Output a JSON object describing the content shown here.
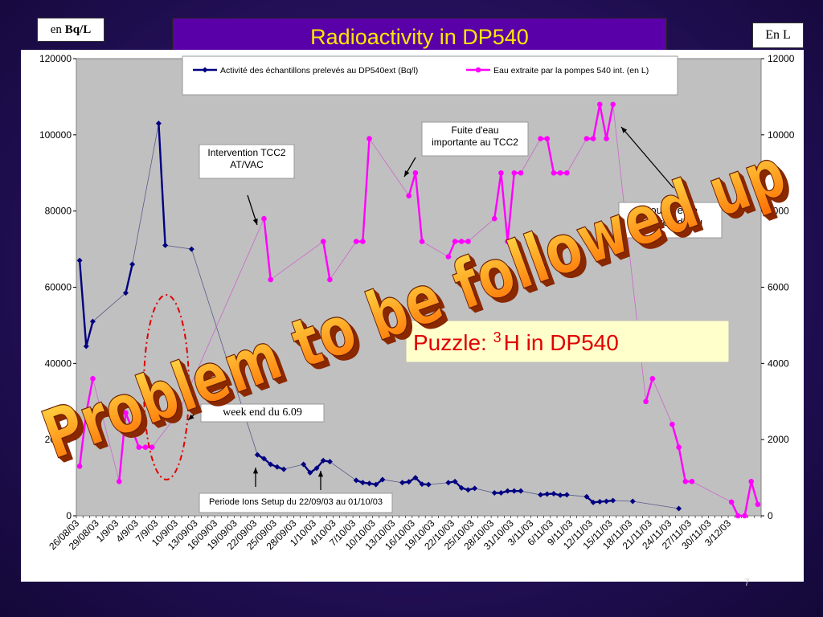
{
  "slide": {
    "title": "Radioactivity in DP540",
    "unit_left_prefix": "en ",
    "unit_left_bold": "Bq/L",
    "unit_right": "En L",
    "overlay_text": "Problem to be followed up",
    "puzzle_text_prefix": "Puzzle: ",
    "puzzle_sup": "3",
    "puzzle_text_suffix": "H in DP540",
    "page_number": "7",
    "colors": {
      "background": "#24105a",
      "title_bg": "#5a00a8",
      "title_text": "#ffe600",
      "plot_bg": "#c0c0c0",
      "series1": "#000080",
      "series2": "#ff00ff",
      "overlay_top": "#ffe14a",
      "overlay_bottom": "#ff6a00",
      "ellipse": "#e00000"
    }
  },
  "chart_data": {
    "type": "line",
    "categories": [
      "26/08/03",
      "27/08/03",
      "28/08/03",
      "29/08/03",
      "30/08/03",
      "31/08/03",
      "1/9/03",
      "2/9/03",
      "3/9/03",
      "4/9/03",
      "5/9/03",
      "6/9/03",
      "7/9/03",
      "8/9/03",
      "9/9/03",
      "10/9/03",
      "11/9/03",
      "12/9/03",
      "13/09/03",
      "14/09/03",
      "15/09/03",
      "16/09/03",
      "17/09/03",
      "18/09/03",
      "19/09/03",
      "20/09/03",
      "21/09/03",
      "22/09/03",
      "23/09/03",
      "24/09/03",
      "25/09/03",
      "26/09/03",
      "27/09/03",
      "28/09/03",
      "29/09/03",
      "30/09/03",
      "1/10/03",
      "2/10/03",
      "3/10/03",
      "4/10/03",
      "5/10/03",
      "6/10/03",
      "7/10/03",
      "8/10/03",
      "9/10/03",
      "10/10/03",
      "11/10/03",
      "12/10/03",
      "13/10/03",
      "14/10/03",
      "15/10/03",
      "16/10/03",
      "17/10/03",
      "18/10/03",
      "19/10/03",
      "20/10/03",
      "21/10/03",
      "22/10/03",
      "23/10/03",
      "24/10/03",
      "25/10/03",
      "26/10/03",
      "27/10/03",
      "28/10/03",
      "29/10/03",
      "30/10/03",
      "31/10/03",
      "1/11/03",
      "2/11/03",
      "3/11/03",
      "4/11/03",
      "5/11/03",
      "6/11/03",
      "7/11/03",
      "8/11/03",
      "9/11/03",
      "10/11/03",
      "11/11/03",
      "12/11/03",
      "13/11/03",
      "14/11/03",
      "15/11/03",
      "16/11/03",
      "17/11/03",
      "18/11/03",
      "19/11/03",
      "20/11/03",
      "21/11/03",
      "22/11/03",
      "23/11/03",
      "24/11/03",
      "25/11/03",
      "26/11/03",
      "27/11/03",
      "28/11/03",
      "29/11/03",
      "30/11/03",
      "1/12/03",
      "2/12/03",
      "3/12/03",
      "4/12/03",
      "5/12/03",
      "6/12/03",
      "7/12/03"
    ],
    "tick_labels": [
      "26/08/03",
      "29/08/03",
      "1/9/03",
      "4/9/03",
      "7/9/03",
      "10/9/03",
      "13/09/03",
      "16/09/03",
      "19/09/03",
      "22/09/03",
      "25/09/03",
      "28/09/03",
      "1/10/03",
      "4/10/03",
      "7/10/03",
      "10/10/03",
      "13/10/03",
      "16/10/03",
      "19/10/03",
      "22/10/03",
      "25/10/03",
      "28/10/03",
      "31/10/03",
      "3/11/03",
      "6/11/03",
      "9/11/03",
      "12/11/03",
      "15/11/03",
      "18/11/03",
      "21/11/03",
      "24/11/03",
      "27/11/03",
      "30/11/03",
      "3/12/03"
    ],
    "y_left": {
      "ylim": [
        0,
        120000
      ],
      "ticks": [
        "0",
        "20000",
        "40000",
        "60000",
        "80000",
        "100000",
        "120000"
      ]
    },
    "y_right": {
      "ylim": [
        0,
        12000
      ],
      "ticks": [
        "0",
        "2000",
        "4000",
        "6000",
        "8000",
        "10000",
        "12000"
      ]
    },
    "legend_placement": "top",
    "series": [
      {
        "name": "Activité des échantillons prelevés au DP540ext (Bq/l)",
        "axis": "left",
        "color": "#000080",
        "marker": "diamond",
        "points": [
          [
            0,
            67000
          ],
          [
            1,
            44500
          ],
          [
            2,
            51000
          ],
          [
            7,
            58500
          ],
          [
            8,
            66000
          ],
          [
            12,
            103000
          ],
          [
            13,
            71000
          ],
          [
            17,
            70000
          ],
          [
            27,
            16000
          ],
          [
            28,
            15000
          ],
          [
            29,
            13500
          ],
          [
            30,
            12800
          ],
          [
            31,
            12200
          ],
          [
            34,
            13500
          ],
          [
            35,
            11300
          ],
          [
            36,
            12500
          ],
          [
            37,
            14500
          ],
          [
            38,
            14200
          ],
          [
            42,
            9300
          ],
          [
            43,
            8700
          ],
          [
            44,
            8500
          ],
          [
            45,
            8200
          ],
          [
            46,
            9500
          ],
          [
            49,
            8700
          ],
          [
            50,
            8900
          ],
          [
            51,
            10000
          ],
          [
            52,
            8300
          ],
          [
            53,
            8200
          ],
          [
            56,
            8700
          ],
          [
            57,
            9000
          ],
          [
            58,
            7300
          ],
          [
            59,
            6800
          ],
          [
            60,
            7200
          ],
          [
            63,
            6000
          ],
          [
            64,
            6000
          ],
          [
            65,
            6500
          ],
          [
            66,
            6500
          ],
          [
            67,
            6500
          ],
          [
            70,
            5500
          ],
          [
            71,
            5700
          ],
          [
            72,
            5800
          ],
          [
            73,
            5400
          ],
          [
            74,
            5500
          ],
          [
            77,
            5000
          ],
          [
            78,
            3500
          ],
          [
            79,
            3700
          ],
          [
            80,
            3800
          ],
          [
            81,
            4000
          ],
          [
            84,
            3800
          ],
          [
            91,
            1900
          ]
        ]
      },
      {
        "name": "Eau extraite par la pompes 540 int. (en L)",
        "axis": "right",
        "color": "#ff00ff",
        "marker": "circle",
        "points": [
          [
            0,
            1300
          ],
          [
            1,
            2700
          ],
          [
            2,
            3600
          ],
          [
            6,
            900
          ],
          [
            7,
            2700
          ],
          [
            9,
            1800
          ],
          [
            10,
            1800
          ],
          [
            11,
            1800
          ],
          [
            15,
            2700
          ],
          [
            28,
            7800
          ],
          [
            29,
            6200
          ],
          [
            37,
            7200
          ],
          [
            38,
            6200
          ],
          [
            42,
            7200
          ],
          [
            43,
            7200
          ],
          [
            44,
            9900
          ],
          [
            50,
            8400
          ],
          [
            51,
            9000
          ],
          [
            52,
            7200
          ],
          [
            56,
            6800
          ],
          [
            57,
            7200
          ],
          [
            58,
            7200
          ],
          [
            59,
            7200
          ],
          [
            63,
            7800
          ],
          [
            64,
            9000
          ],
          [
            65,
            7200
          ],
          [
            66,
            9000
          ],
          [
            67,
            9000
          ],
          [
            70,
            9900
          ],
          [
            71,
            9900
          ],
          [
            72,
            9000
          ],
          [
            73,
            9000
          ],
          [
            74,
            9000
          ],
          [
            77,
            9900
          ],
          [
            78,
            9900
          ],
          [
            79,
            10800
          ],
          [
            80,
            9900
          ],
          [
            81,
            10800
          ],
          [
            86,
            3000
          ],
          [
            87,
            3600
          ],
          [
            90,
            2400
          ],
          [
            91,
            1800
          ],
          [
            92,
            900
          ],
          [
            93,
            900
          ],
          [
            99,
            360
          ],
          [
            100,
            0
          ],
          [
            101,
            0
          ],
          [
            102,
            900
          ],
          [
            103,
            300
          ]
        ]
      }
    ],
    "annotations": [
      {
        "id": "tcc2",
        "text": "Intervention TCC2 AT/VAC"
      },
      {
        "id": "fuite",
        "text": "Fuite d'eau importante au TCC2"
      },
      {
        "id": "coupure",
        "text": "Coupure de l'arrivée d'eau"
      },
      {
        "id": "weekend",
        "text": "week end du 6.09"
      },
      {
        "id": "periode",
        "text": "Periode Ions Setup du 22/09/03 au 01/10/03"
      }
    ]
  }
}
